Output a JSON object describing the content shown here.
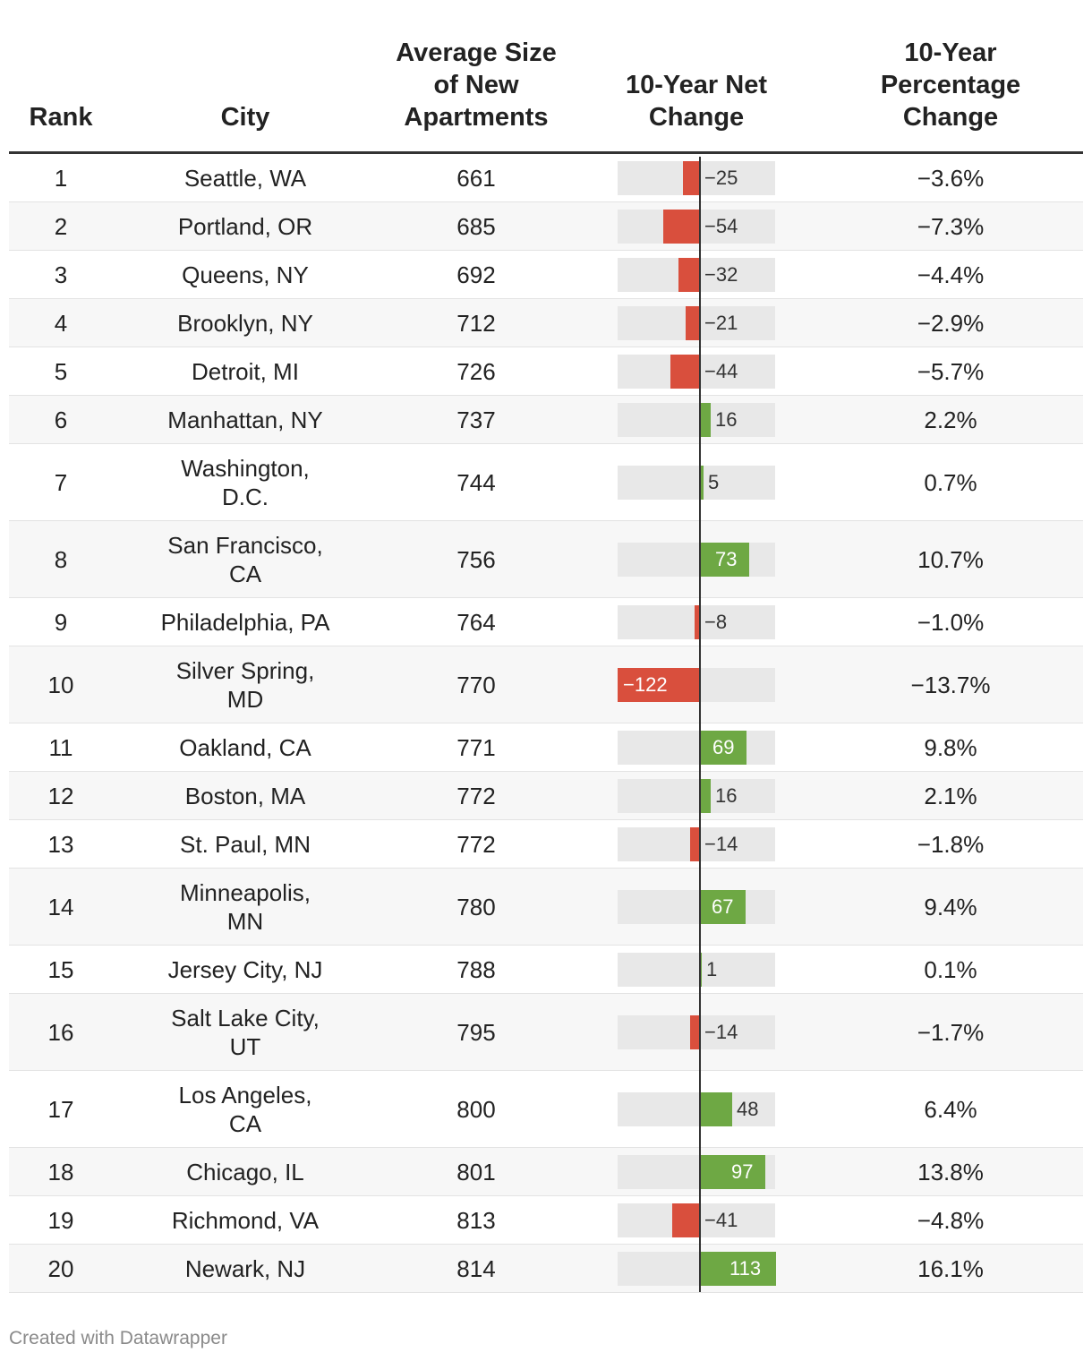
{
  "header": {
    "rank": "Rank",
    "city": "City",
    "avg_line1": "Average Size",
    "avg_line2": "of New",
    "avg_line3": "Apartments",
    "net_line1": "10-Year Net",
    "net_line2": "Change",
    "pct_line1": "10-Year",
    "pct_line2": "Percentage",
    "pct_line3": "Change"
  },
  "chart_data": {
    "type": "table",
    "title": "",
    "columns": [
      "Rank",
      "City",
      "Average Size of New Apartments",
      "10-Year Net Change",
      "10-Year Percentage Change"
    ],
    "bar_column": "10-Year Net Change",
    "bar_range": [
      -122,
      113
    ],
    "rows": [
      {
        "rank": "1",
        "city_line1": "Seattle, WA",
        "city_line2": "",
        "avg": "661",
        "net": -25,
        "net_label": "−25",
        "pct": "−3.6%"
      },
      {
        "rank": "2",
        "city_line1": "Portland, OR",
        "city_line2": "",
        "avg": "685",
        "net": -54,
        "net_label": "−54",
        "pct": "−7.3%"
      },
      {
        "rank": "3",
        "city_line1": "Queens, NY",
        "city_line2": "",
        "avg": "692",
        "net": -32,
        "net_label": "−32",
        "pct": "−4.4%"
      },
      {
        "rank": "4",
        "city_line1": "Brooklyn, NY",
        "city_line2": "",
        "avg": "712",
        "net": -21,
        "net_label": "−21",
        "pct": "−2.9%"
      },
      {
        "rank": "5",
        "city_line1": "Detroit, MI",
        "city_line2": "",
        "avg": "726",
        "net": -44,
        "net_label": "−44",
        "pct": "−5.7%"
      },
      {
        "rank": "6",
        "city_line1": "Manhattan, NY",
        "city_line2": "",
        "avg": "737",
        "net": 16,
        "net_label": "16",
        "pct": "2.2%"
      },
      {
        "rank": "7",
        "city_line1": "Washington,",
        "city_line2": "D.C.",
        "avg": "744",
        "net": 5,
        "net_label": "5",
        "pct": "0.7%"
      },
      {
        "rank": "8",
        "city_line1": "San Francisco,",
        "city_line2": "CA",
        "avg": "756",
        "net": 73,
        "net_label": "73",
        "pct": "10.7%"
      },
      {
        "rank": "9",
        "city_line1": "Philadelphia, PA",
        "city_line2": "",
        "avg": "764",
        "net": -8,
        "net_label": "−8",
        "pct": "−1.0%"
      },
      {
        "rank": "10",
        "city_line1": "Silver Spring,",
        "city_line2": "MD",
        "avg": "770",
        "net": -122,
        "net_label": "−122",
        "pct": "−13.7%"
      },
      {
        "rank": "11",
        "city_line1": "Oakland, CA",
        "city_line2": "",
        "avg": "771",
        "net": 69,
        "net_label": "69",
        "pct": "9.8%"
      },
      {
        "rank": "12",
        "city_line1": "Boston, MA",
        "city_line2": "",
        "avg": "772",
        "net": 16,
        "net_label": "16",
        "pct": "2.1%"
      },
      {
        "rank": "13",
        "city_line1": "St. Paul, MN",
        "city_line2": "",
        "avg": "772",
        "net": -14,
        "net_label": "−14",
        "pct": "−1.8%"
      },
      {
        "rank": "14",
        "city_line1": "Minneapolis,",
        "city_line2": "MN",
        "avg": "780",
        "net": 67,
        "net_label": "67",
        "pct": "9.4%"
      },
      {
        "rank": "15",
        "city_line1": "Jersey City, NJ",
        "city_line2": "",
        "avg": "788",
        "net": 1,
        "net_label": "1",
        "pct": "0.1%"
      },
      {
        "rank": "16",
        "city_line1": "Salt Lake City,",
        "city_line2": "UT",
        "avg": "795",
        "net": -14,
        "net_label": "−14",
        "pct": "−1.7%"
      },
      {
        "rank": "17",
        "city_line1": "Los Angeles,",
        "city_line2": "CA",
        "avg": "800",
        "net": 48,
        "net_label": "48",
        "pct": "6.4%"
      },
      {
        "rank": "18",
        "city_line1": "Chicago, IL",
        "city_line2": "",
        "avg": "801",
        "net": 97,
        "net_label": "97",
        "pct": "13.8%"
      },
      {
        "rank": "19",
        "city_line1": "Richmond, VA",
        "city_line2": "",
        "avg": "813",
        "net": -41,
        "net_label": "−41",
        "pct": "−4.8%"
      },
      {
        "rank": "20",
        "city_line1": "Newark, NJ",
        "city_line2": "",
        "avg": "814",
        "net": 113,
        "net_label": "113",
        "pct": "16.1%"
      }
    ]
  },
  "colors": {
    "negative": "#d94f3d",
    "positive": "#6ea844",
    "bar_background": "#e8e8e8"
  },
  "footer": {
    "credit": "Created with Datawrapper"
  }
}
